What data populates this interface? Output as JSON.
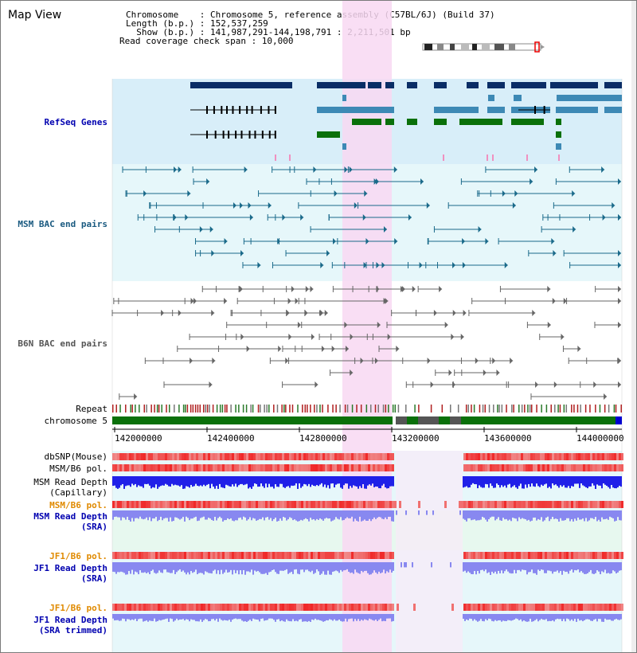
{
  "header": {
    "title": "Map View",
    "info_lines": [
      "Chromosome    : Chromosome 5, reference assembly (C57BL/6J) (Build 37)",
      "Length (b.p.) : 152,537,259",
      "  Show (b.p.) : 141,987,291-144,198,791 : 2,211,501 bp",
      "Read coverage check span : 10,000"
    ]
  },
  "tracks": {
    "refseq": {
      "label": "RefSeq Genes",
      "color": "#0000b0"
    },
    "msm_bac": {
      "label": "MSM BAC end pairs",
      "color": "#1a5a80"
    },
    "b6n_bac": {
      "label": "B6N BAC end pairs",
      "color": "#555555"
    },
    "repeat": {
      "label": "Repeat"
    },
    "chromosome": {
      "label": "chromosome 5"
    },
    "axis_ticks": [
      "142000000",
      "142400000",
      "142800000",
      "143200000",
      "143600000",
      "144000000"
    ],
    "dbsnp": {
      "label": "dbSNP(Mouse)"
    },
    "msm_b6_pol": {
      "label": "MSM/B6 pol."
    },
    "msm_read_cap": {
      "label": "MSM Read Depth",
      "sub": "(Capillary)"
    },
    "msm_b6_pol2": {
      "label": "MSM/B6 pol.",
      "color": "#e08a00"
    },
    "msm_read_sra": {
      "label": "MSM Read Depth",
      "sub": "(SRA)",
      "color": "#0000b0"
    },
    "jf1_b6_pol": {
      "label": "JF1/B6 pol.",
      "color": "#e08a00"
    },
    "jf1_read_sra": {
      "label": "JF1 Read Depth",
      "sub": "(SRA)",
      "color": "#0000b0"
    },
    "jf1_b6_pol2": {
      "label": "JF1/B6 pol.",
      "color": "#e08a00"
    },
    "jf1_read_sra_trim": {
      "label": "JF1 Read Depth",
      "sub": "(SRA trimmed)",
      "color": "#0000b0"
    }
  },
  "colors": {
    "highlight": "#f8d8f2",
    "refseq_bg": "#d8eef9",
    "bac_bg": "#e6f7fa",
    "gene_dark": "#0a2d66",
    "gene_teal": "#3d89b5",
    "gene_green": "#0a700a",
    "chrom_green": "#0a700a",
    "read_blue": "#2020e8",
    "read_light": "#8888f0",
    "pol_red": "#f06060"
  }
}
